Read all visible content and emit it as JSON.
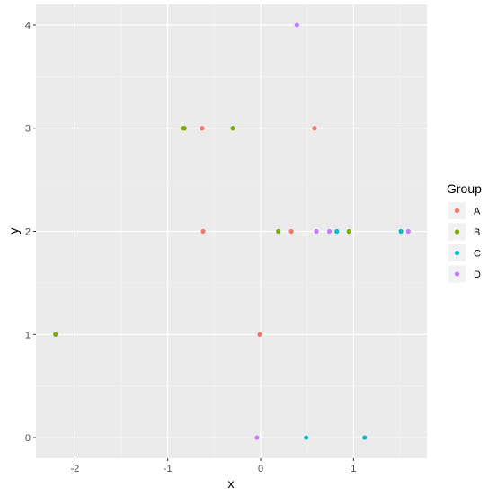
{
  "chart_data": {
    "type": "scatter",
    "xlabel": "x",
    "ylabel": "y",
    "xlim": [
      -2.42,
      1.79
    ],
    "ylim": [
      -0.2,
      4.2
    ],
    "x_ticks": [
      -2,
      -1,
      0,
      1
    ],
    "y_ticks": [
      0,
      1,
      2,
      3,
      4
    ],
    "grid": true,
    "panel_background": "#ebebeb",
    "legend": {
      "title": "Group",
      "position": "right"
    },
    "series": [
      {
        "name": "A",
        "color": "#f8766d",
        "points": [
          {
            "x": -0.63,
            "y": 3
          },
          {
            "x": 0.58,
            "y": 3
          },
          {
            "x": -0.62,
            "y": 2
          },
          {
            "x": 0.33,
            "y": 2
          },
          {
            "x": -0.01,
            "y": 1
          }
        ]
      },
      {
        "name": "B",
        "color": "#7cae00",
        "points": [
          {
            "x": -0.84,
            "y": 3
          },
          {
            "x": -0.82,
            "y": 3
          },
          {
            "x": -0.3,
            "y": 3
          },
          {
            "x": 0.19,
            "y": 2
          },
          {
            "x": 0.95,
            "y": 2
          },
          {
            "x": -2.21,
            "y": 1
          }
        ]
      },
      {
        "name": "C",
        "color": "#00bfc4",
        "points": [
          {
            "x": 0.82,
            "y": 2
          },
          {
            "x": 1.51,
            "y": 2
          },
          {
            "x": 0.49,
            "y": 0
          },
          {
            "x": 1.12,
            "y": 0
          }
        ]
      },
      {
        "name": "D",
        "color": "#c77cff",
        "points": [
          {
            "x": 0.39,
            "y": 4
          },
          {
            "x": 0.6,
            "y": 2
          },
          {
            "x": 0.74,
            "y": 2
          },
          {
            "x": 1.59,
            "y": 2
          },
          {
            "x": -0.04,
            "y": 0
          }
        ]
      }
    ]
  }
}
